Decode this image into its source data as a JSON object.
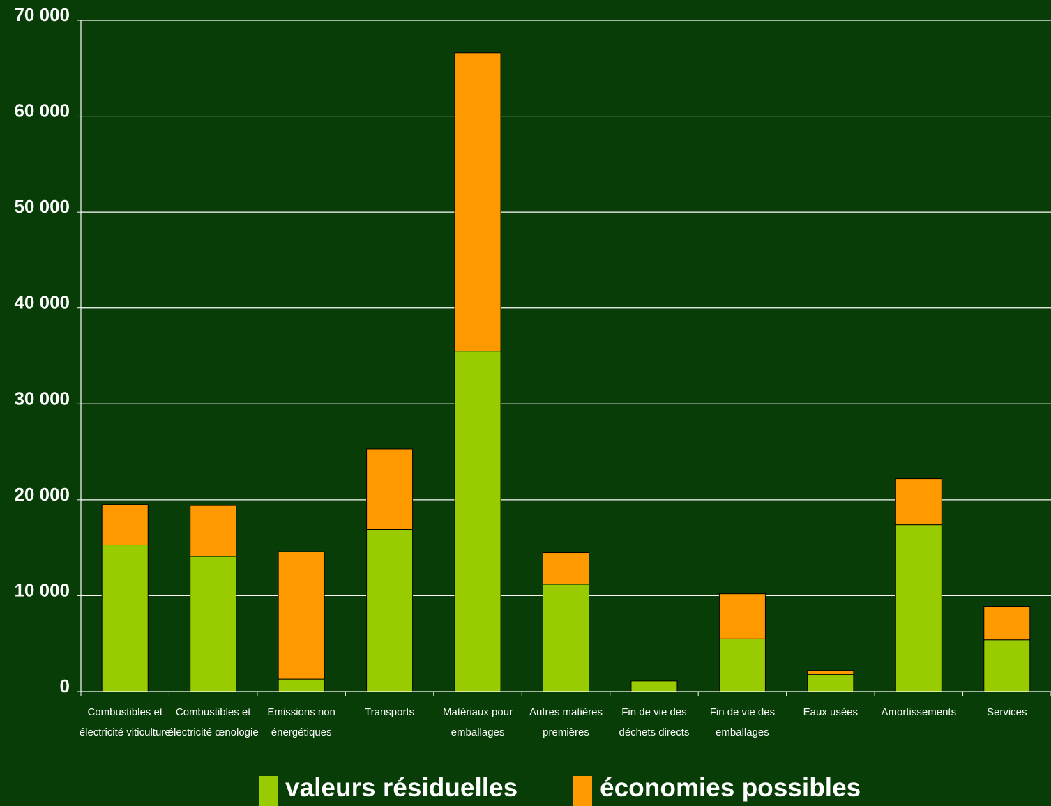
{
  "chart_data": {
    "type": "bar",
    "stacked": true,
    "title": "",
    "xlabel": "",
    "ylabel": "",
    "ylim": [
      0,
      70000
    ],
    "yticks": [
      0,
      10000,
      20000,
      30000,
      40000,
      50000,
      60000,
      70000
    ],
    "ytick_labels": [
      "0",
      "10 000",
      "20 000",
      "30 000",
      "40 000",
      "50 000",
      "60 000",
      "70 000"
    ],
    "grid": true,
    "legend_position": "bottom",
    "categories": [
      [
        "Combustibles et",
        "électricité viticulture"
      ],
      [
        "Combustibles et",
        "électricité œnologie"
      ],
      [
        "Emissions non",
        "énergétiques"
      ],
      [
        "Transports"
      ],
      [
        "Matériaux pour",
        "emballages"
      ],
      [
        "Autres matières",
        "premières"
      ],
      [
        "Fin de vie des",
        "déchets directs"
      ],
      [
        "Fin de vie des",
        "emballages"
      ],
      [
        "Eaux usées"
      ],
      [
        "Amortissements"
      ],
      [
        "Services"
      ]
    ],
    "series": [
      {
        "name": "valeurs résiduelles",
        "color": "#99cc00",
        "values": [
          15300,
          14100,
          1300,
          16900,
          35500,
          11200,
          1100,
          5500,
          1800,
          17400,
          5400
        ]
      },
      {
        "name": "économies possibles",
        "color": "#ff9900",
        "values": [
          4200,
          5300,
          13300,
          8400,
          31100,
          3300,
          0,
          4700,
          400,
          4800,
          3500
        ]
      }
    ]
  },
  "colors": {
    "background": "#083d08",
    "gridline": "#ffffff",
    "text": "#ffffff"
  }
}
